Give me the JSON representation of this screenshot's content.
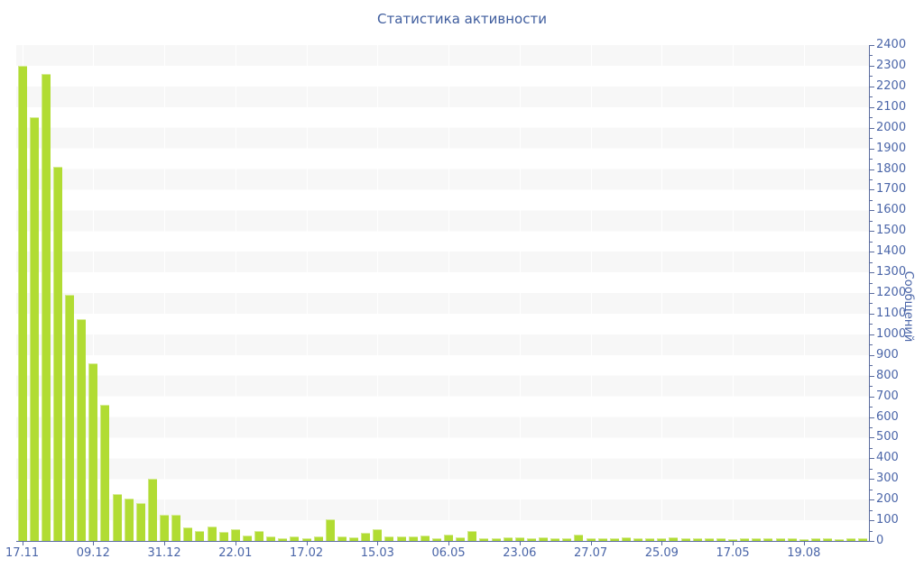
{
  "chart_data": {
    "type": "bar",
    "title": "Статистика активности",
    "xlabel": "",
    "ylabel": "Сообщений",
    "ylim": [
      0,
      2400
    ],
    "y_tick_step": 100,
    "y_minor_tick_step": 50,
    "grid": "horizontal-stripes",
    "legend_position": "none",
    "x_tick_labels": [
      "17.11",
      "09.12",
      "31.12",
      "22.01",
      "17.02",
      "15.03",
      "06.05",
      "23.06",
      "27.07",
      "25.09",
      "17.05",
      "19.08"
    ],
    "x_tick_every_n_bars": 6,
    "values": [
      2300,
      2050,
      2260,
      1810,
      1190,
      1075,
      860,
      660,
      225,
      205,
      183,
      300,
      125,
      125,
      65,
      50,
      70,
      43,
      57,
      28,
      48,
      22,
      13,
      22,
      13,
      20,
      105,
      21,
      16,
      40,
      55,
      20,
      22,
      22,
      26,
      15,
      32,
      17,
      47,
      12,
      15,
      17,
      17,
      15,
      17,
      15,
      12,
      32,
      12,
      15,
      12,
      17,
      15,
      12,
      15,
      17,
      15,
      12,
      12,
      12,
      9,
      12,
      12,
      15,
      15,
      12,
      9,
      12,
      12,
      9,
      12,
      15
    ],
    "colors": {
      "bar": "#b1dc33",
      "bar_highlight": "#d6ec96",
      "stripe": "#f7f7f7",
      "axis": "#5b6c9e",
      "text": "#4a65a8",
      "title_text": "#3f5d9e",
      "background": "#ffffff"
    }
  }
}
